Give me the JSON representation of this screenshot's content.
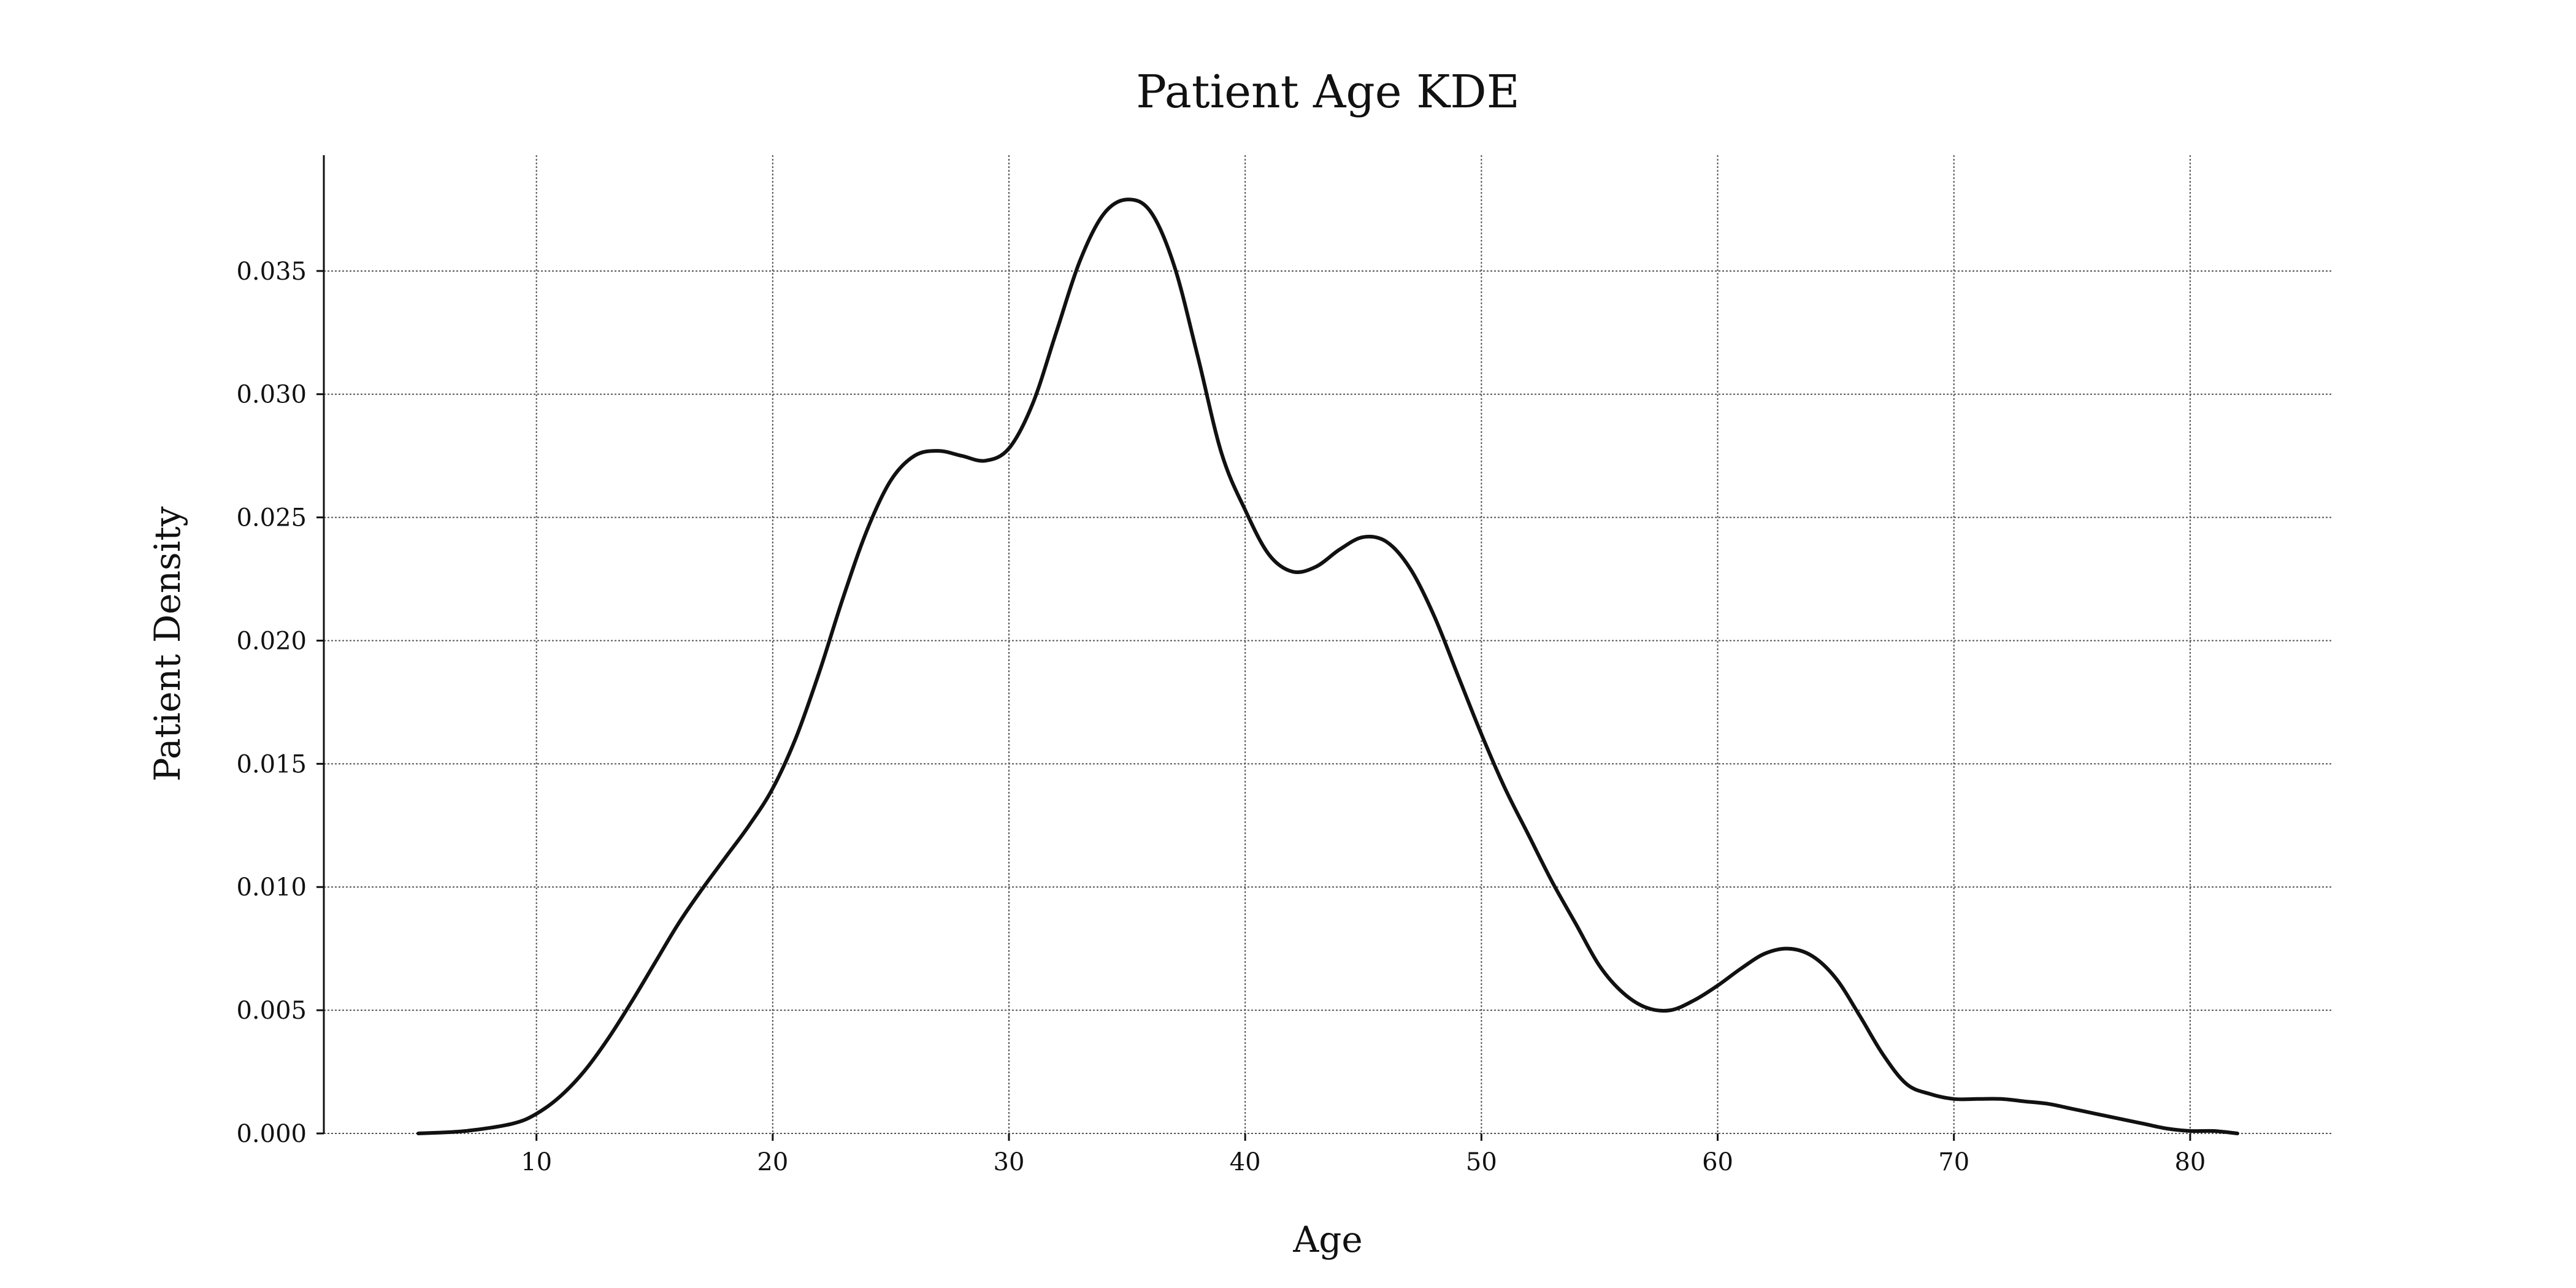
{
  "chart_data": {
    "type": "line",
    "title": "Patient Age KDE",
    "xlabel": "Age",
    "ylabel": "Patient Density",
    "xlim": [
      1,
      86
    ],
    "ylim": [
      0,
      0.0397
    ],
    "xticks": [
      10,
      20,
      30,
      40,
      50,
      60,
      70,
      80
    ],
    "xtick_labels": [
      "10",
      "20",
      "30",
      "40",
      "50",
      "60",
      "70",
      "80"
    ],
    "yticks": [
      0,
      0.005,
      0.01,
      0.015,
      0.02,
      0.025,
      0.03,
      0.035
    ],
    "ytick_labels": [
      "0.000",
      "0.005",
      "0.010",
      "0.015",
      "0.020",
      "0.025",
      "0.030",
      "0.035"
    ],
    "grid": true,
    "line_color": "#111111",
    "series": [
      {
        "x": [
          5,
          7,
          9,
          10,
          11,
          12,
          13,
          14,
          15,
          16,
          17,
          18,
          19,
          20,
          21,
          22,
          23,
          24,
          25,
          26,
          27,
          28,
          29,
          30,
          31,
          32,
          33,
          34,
          35,
          36,
          37,
          38,
          39,
          40,
          41,
          42,
          43,
          44,
          45,
          46,
          47,
          48,
          49,
          50,
          51,
          52,
          53,
          54,
          55,
          56,
          57,
          58,
          59,
          60,
          61,
          62,
          63,
          64,
          65,
          66,
          67,
          68,
          69,
          70,
          71,
          72,
          73,
          74,
          75,
          76,
          77,
          78,
          79,
          80,
          81,
          82
        ],
        "y": [
          0.0,
          0.0001,
          0.0004,
          0.0008,
          0.0015,
          0.0025,
          0.0038,
          0.0053,
          0.0069,
          0.0085,
          0.0099,
          0.0112,
          0.0125,
          0.014,
          0.0161,
          0.0188,
          0.0218,
          0.0245,
          0.0265,
          0.0275,
          0.0277,
          0.0275,
          0.0273,
          0.0278,
          0.0296,
          0.0325,
          0.0354,
          0.0373,
          0.0379,
          0.0374,
          0.0352,
          0.0315,
          0.0276,
          0.0253,
          0.0235,
          0.0228,
          0.023,
          0.0237,
          0.0242,
          0.024,
          0.0229,
          0.021,
          0.0186,
          0.0162,
          0.014,
          0.0121,
          0.0102,
          0.0085,
          0.0068,
          0.0057,
          0.0051,
          0.005,
          0.0054,
          0.006,
          0.0067,
          0.0073,
          0.0075,
          0.0072,
          0.0063,
          0.0048,
          0.0032,
          0.002,
          0.0016,
          0.0014,
          0.0014,
          0.0014,
          0.0013,
          0.0012,
          0.001,
          0.0008,
          0.0006,
          0.0004,
          0.0002,
          0.0001,
          0.0001,
          0.0
        ]
      }
    ]
  }
}
